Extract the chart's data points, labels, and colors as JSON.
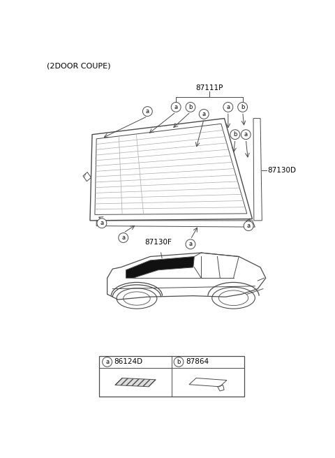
{
  "title": "(2DOOR COUPE)",
  "bg_color": "#ffffff",
  "line_color": "#4a4a4a",
  "part_87111P": "87111P",
  "part_87130D": "87130D",
  "part_87130F": "87130F",
  "part_86124D": "86124D",
  "part_87864": "87864"
}
